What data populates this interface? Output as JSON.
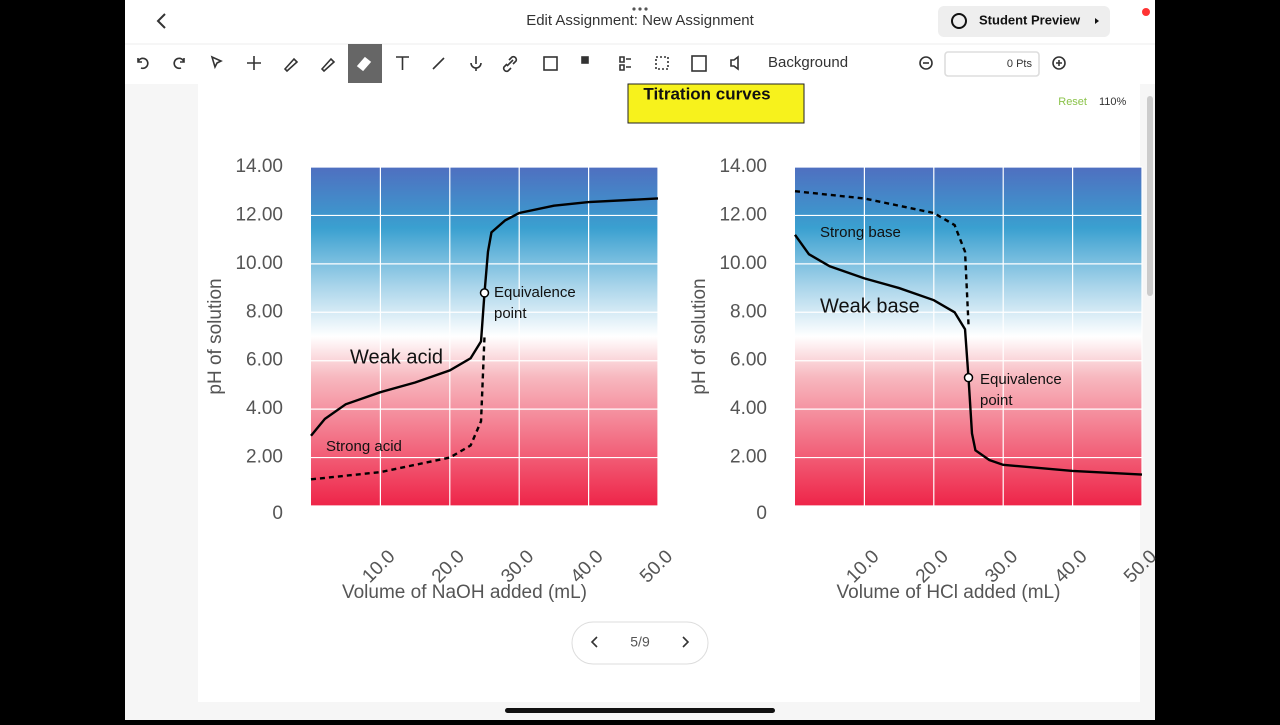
{
  "header": {
    "title": "Edit Assignment: New Assignment",
    "preview_button": "Student Preview"
  },
  "toolbar": {
    "background": "Background",
    "points": "0 Pts",
    "reset": "Reset",
    "zoom": "110%"
  },
  "slide": {
    "title": "Titration curves",
    "pager": "5/9"
  },
  "chart_data": [
    {
      "type": "line",
      "ylabel": "pH of solution",
      "xlabel": "Volume of NaOH added (mL)",
      "xlim": [
        0,
        50
      ],
      "ylim": [
        0,
        14
      ],
      "xticks": [
        {
          "value": 10,
          "label": "10.0"
        },
        {
          "value": 20,
          "label": "20.0"
        },
        {
          "value": 30,
          "label": "30.0"
        },
        {
          "value": 40,
          "label": "40.0"
        },
        {
          "value": 50,
          "label": "50.0"
        }
      ],
      "yticks": [
        0,
        {
          "value": 2,
          "label": "2.00"
        },
        {
          "value": 4,
          "label": "4.00"
        },
        {
          "value": 6,
          "label": "6.00"
        },
        {
          "value": 8,
          "label": "8.00"
        },
        {
          "value": 10,
          "label": "10.00"
        },
        {
          "value": 12,
          "label": "12.00"
        },
        {
          "value": 14,
          "label": "14.00"
        }
      ],
      "grid": true,
      "series": [
        {
          "color": "#000000",
          "dashed": false,
          "x": [
            0,
            2,
            5,
            10,
            15,
            20,
            23,
            24.5,
            25,
            25.5,
            26,
            28,
            30,
            35,
            40,
            50
          ],
          "values": [
            2.9,
            3.6,
            4.2,
            4.7,
            5.1,
            5.6,
            6.1,
            6.8,
            8.8,
            10.5,
            11.3,
            11.8,
            12.1,
            12.4,
            12.55,
            12.7
          ]
        },
        {
          "color": "#000000",
          "dashed": true,
          "x": [
            0,
            10,
            20,
            23,
            24.5,
            25
          ],
          "values": [
            1.1,
            1.4,
            2.0,
            2.5,
            3.5,
            7.0
          ]
        }
      ],
      "equivalence_point": {
        "x": 25,
        "y": 8.8
      },
      "annotations": [
        "Weak acid",
        "Strong acid",
        "Equivalence",
        "point"
      ]
    },
    {
      "type": "line",
      "ylabel": "pH of solution",
      "xlabel": "Volume of HCl added (mL)",
      "xlim": [
        0,
        50
      ],
      "ylim": [
        0,
        14
      ],
      "xticks": [
        {
          "value": 10,
          "label": "10.0"
        },
        {
          "value": 20,
          "label": "20.0"
        },
        {
          "value": 30,
          "label": "30.0"
        },
        {
          "value": 40,
          "label": "40.0"
        },
        {
          "value": 50,
          "label": "50.0"
        }
      ],
      "yticks": [
        0,
        {
          "value": 2,
          "label": "2.00"
        },
        {
          "value": 4,
          "label": "4.00"
        },
        {
          "value": 6,
          "label": "6.00"
        },
        {
          "value": 8,
          "label": "8.00"
        },
        {
          "value": 10,
          "label": "10.00"
        },
        {
          "value": 12,
          "label": "12.00"
        },
        {
          "value": 14,
          "label": "14.00"
        }
      ],
      "grid": true,
      "series": [
        {
          "color": "#000000",
          "dashed": false,
          "x": [
            0,
            2,
            5,
            10,
            15,
            20,
            23,
            24.5,
            25,
            25.5,
            26,
            28,
            30,
            40,
            50
          ],
          "values": [
            11.2,
            10.4,
            9.9,
            9.4,
            9.0,
            8.5,
            8.0,
            7.3,
            5.3,
            3.0,
            2.3,
            1.9,
            1.7,
            1.45,
            1.3
          ]
        },
        {
          "color": "#000000",
          "dashed": true,
          "x": [
            0,
            10,
            20,
            23,
            24.5,
            25
          ],
          "values": [
            13.0,
            12.7,
            12.1,
            11.6,
            10.5,
            7.5
          ]
        }
      ],
      "equivalence_point": {
        "x": 25,
        "y": 5.3
      },
      "annotations": [
        "Strong base",
        "Weak base",
        "Equivalence",
        "point"
      ]
    }
  ]
}
